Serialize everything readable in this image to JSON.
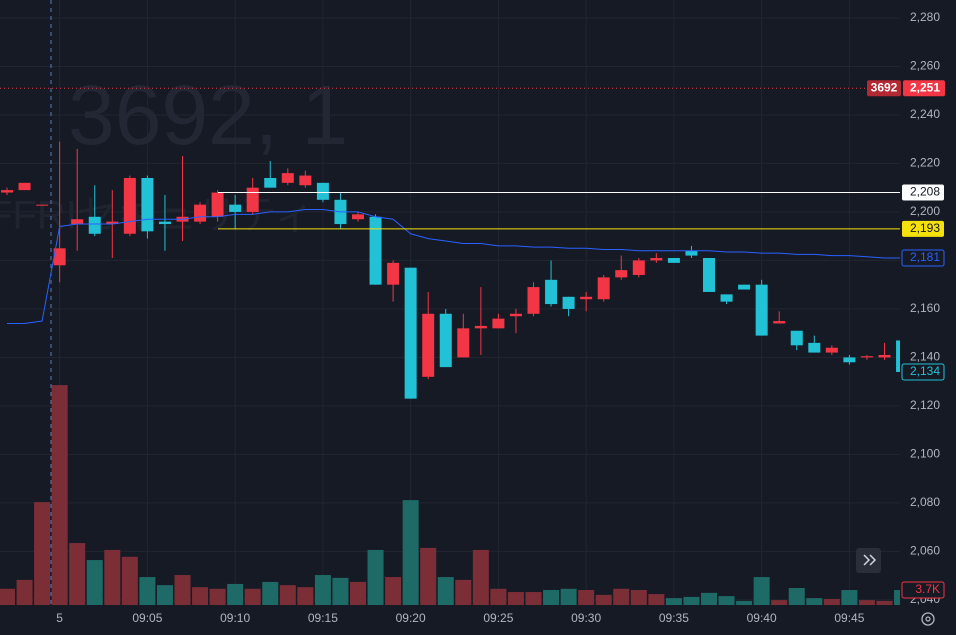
{
  "chart_data": {
    "type": "candlestick",
    "watermark": "3692, 1",
    "watermark_name": "FFRIセキュリティ",
    "categories": [
      "08:57",
      "08:58",
      "08:59",
      "09:00",
      "09:01",
      "09:02",
      "09:03",
      "09:04",
      "09:05",
      "09:06",
      "09:07",
      "09:08",
      "09:09",
      "09:10",
      "09:11",
      "09:12",
      "09:13",
      "09:14",
      "09:15",
      "09:16",
      "09:17",
      "09:18",
      "09:19",
      "09:20",
      "09:21",
      "09:22",
      "09:23",
      "09:24",
      "09:25",
      "09:26",
      "09:27",
      "09:28",
      "09:29",
      "09:30",
      "09:31",
      "09:32",
      "09:33",
      "09:34",
      "09:35",
      "09:36",
      "09:37",
      "09:38",
      "09:39",
      "09:40",
      "09:41",
      "09:42",
      "09:43",
      "09:44",
      "09:45",
      "09:46",
      "09:47",
      "09:48"
    ],
    "open": [
      2208,
      2209,
      2203,
      2178,
      2195,
      2198,
      2195,
      2191,
      2214,
      2196,
      2196,
      2196,
      2198,
      2203,
      2200,
      2214,
      2212,
      2211,
      2212,
      2205,
      2197,
      2198,
      2170,
      2177,
      2132,
      2158,
      2140,
      2152,
      2152,
      2157,
      2158,
      2172,
      2165,
      2164,
      2164,
      2173,
      2174,
      2180,
      2181,
      2184,
      2181,
      2166,
      2170,
      2170,
      2154,
      2151,
      2146,
      2142,
      2140,
      2140,
      2140,
      2147
    ],
    "high": [
      2210,
      2212,
      2203,
      2229,
      2226,
      2211,
      2209,
      2215,
      2215,
      2207,
      2223,
      2204,
      2209,
      2207,
      2214,
      2221,
      2218,
      2217,
      2212,
      2208,
      2200,
      2199,
      2180,
      2177,
      2167,
      2160,
      2158,
      2169,
      2158,
      2160,
      2171,
      2180,
      2165,
      2167,
      2174,
      2182,
      2181,
      2183,
      2181,
      2186,
      2181,
      2166,
      2170,
      2172,
      2159,
      2151,
      2149,
      2145,
      2141,
      2141,
      2146,
      2147
    ],
    "low": [
      2207,
      2209,
      2203,
      2171,
      2184,
      2190,
      2181,
      2190,
      2189,
      2184,
      2188,
      2195,
      2196,
      2193,
      2199,
      2210,
      2211,
      2210,
      2204,
      2193,
      2196,
      2170,
      2163,
      2123,
      2131,
      2136,
      2140,
      2141,
      2152,
      2150,
      2157,
      2161,
      2157,
      2159,
      2163,
      2172,
      2173,
      2179,
      2179,
      2181,
      2167,
      2162,
      2168,
      2149,
      2154,
      2143,
      2142,
      2141,
      2137,
      2139,
      2139,
      2134
    ],
    "close": [
      2209,
      2212,
      2203,
      2185,
      2197,
      2191,
      2196,
      2214,
      2192,
      2195,
      2198,
      2203,
      2208,
      2200,
      2210,
      2210,
      2216,
      2215,
      2205,
      2195,
      2199,
      2170,
      2179,
      2123,
      2158,
      2136,
      2152,
      2153,
      2156,
      2158,
      2169,
      2162,
      2160,
      2165,
      2173,
      2176,
      2180,
      2181,
      2179,
      2182,
      2167,
      2163,
      2168,
      2149,
      2155,
      2145,
      2142,
      2144,
      2138,
      2140.5,
      2141,
      2134
    ],
    "ma": [
      2154,
      2154,
      2155,
      2194,
      2195,
      2195,
      2195,
      2196,
      2197,
      2197,
      2197,
      2198,
      2198,
      2199,
      2199,
      2200,
      2200,
      2201,
      2201,
      2200,
      2200,
      2198,
      2197,
      2191,
      2189,
      2188,
      2187,
      2187,
      2186,
      2186,
      2185.5,
      2185.5,
      2185,
      2185,
      2184.5,
      2184.5,
      2184,
      2184,
      2184,
      2184,
      2184,
      2183.5,
      2183.5,
      2183,
      2183,
      2182.5,
      2182.5,
      2182,
      2182,
      2181.5,
      2181,
      2181
    ],
    "volume": [
      4000,
      6200,
      25400,
      54300,
      15300,
      11100,
      13600,
      11900,
      6900,
      4900,
      7400,
      4400,
      4000,
      5200,
      4000,
      5700,
      4900,
      4400,
      7400,
      6700,
      5700,
      13600,
      6900,
      25900,
      14100,
      6900,
      6200,
      13600,
      4000,
      3200,
      3200,
      3700,
      4000,
      3700,
      2500,
      4000,
      3700,
      2700,
      1700,
      2000,
      3000,
      2200,
      1000,
      6900,
      1200,
      4200,
      1700,
      1500,
      3700,
      1200,
      1000,
      3700
    ],
    "volume_ylim": [
      0,
      60000
    ],
    "up_color": "#f23645",
    "down_color": "#22c1d6",
    "up_volume_color": "#7c2e37",
    "down_volume_color": "#1e6a66",
    "ma_color": "#2962ff",
    "ylim": [
      2037.9,
      2287.4
    ],
    "yticks": [
      {
        "value": 2040,
        "label": "2,040"
      },
      {
        "value": 2060,
        "label": "2,060"
      },
      {
        "value": 2080,
        "label": "2,080"
      },
      {
        "value": 2100,
        "label": "2,100"
      },
      {
        "value": 2120,
        "label": "2,120"
      },
      {
        "value": 2140,
        "label": "2,140"
      },
      {
        "value": 2160,
        "label": "2,160"
      },
      {
        "value": 2180,
        "label": "2,180"
      },
      {
        "value": 2200,
        "label": "2,200"
      },
      {
        "value": 2220,
        "label": "2,220"
      },
      {
        "value": 2240,
        "label": "2,240"
      },
      {
        "value": 2260,
        "label": "2,260"
      },
      {
        "value": 2280,
        "label": "2,280"
      }
    ],
    "xticks": [
      {
        "value": "09:00",
        "label": "5"
      },
      "09:05",
      "09:10",
      "09:15",
      "09:20",
      "09:25",
      "09:30",
      "09:35",
      "09:40",
      "09:45"
    ],
    "grid": true,
    "price_lines": [
      {
        "value": 2208,
        "label": "2,208",
        "color": "#ffffff"
      },
      {
        "value": 2193,
        "label": "2,193",
        "color": "#f5e10c"
      }
    ],
    "alert_line": {
      "value": 2251,
      "label": "2,251",
      "name": "3692",
      "color": "#f23645"
    },
    "ma_last_label": {
      "value": 2181,
      "label": "2,181"
    },
    "last_price_label": {
      "value": 2134,
      "label": "2,134"
    },
    "volume_last_label": {
      "value": 3700,
      "label": "3.7K"
    }
  }
}
